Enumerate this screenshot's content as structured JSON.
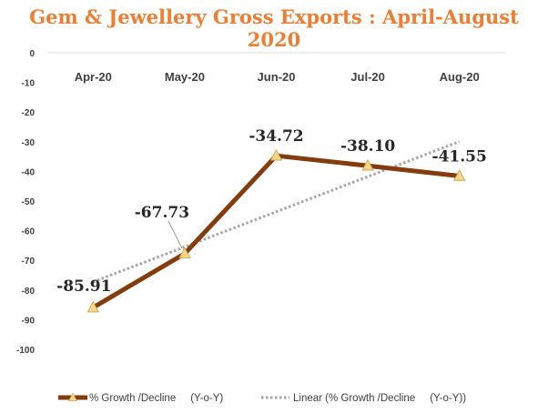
{
  "chart_data": {
    "type": "line",
    "title": "Gem & Jewellery Gross Exports : April-August 2020",
    "categories": [
      "Apr-20",
      "May-20",
      "Jun-20",
      "Jul-20",
      "Aug-20"
    ],
    "series": [
      {
        "name": "% Growth /Decline     (Y-o-Y)",
        "values": [
          -85.91,
          -67.73,
          -34.72,
          -38.1,
          -41.55
        ],
        "labels": [
          "-85.91",
          "-67.73",
          "-34.72",
          "-38.10",
          "-41.55"
        ],
        "color": "#843c0c",
        "marker_color": "#f6d58a"
      }
    ],
    "trendline": {
      "name": "Linear (% Growth /Decline     (Y-o-Y))",
      "type": "linear",
      "color": "#a6a6a6"
    },
    "yticks": [
      "0",
      "-10",
      "-20",
      "-30",
      "-40",
      "-50",
      "-60",
      "-70",
      "-80",
      "-90",
      "-100"
    ],
    "ylim": [
      -100,
      0
    ],
    "x_axis_position": "top",
    "grid": false,
    "legend_position": "bottom",
    "title_color": "#ed7d31"
  }
}
